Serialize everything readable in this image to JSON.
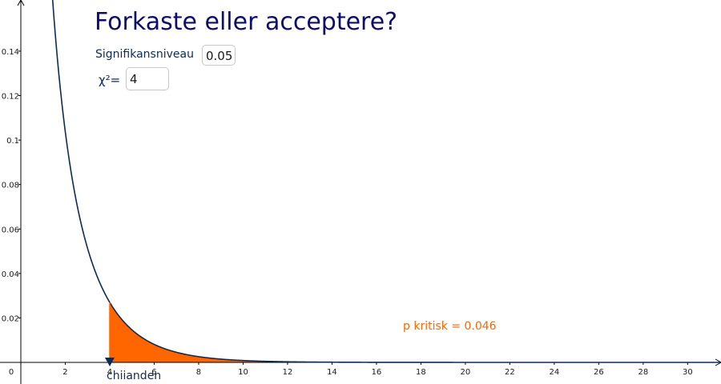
{
  "title": "Forkaste eller acceptere?",
  "significance": {
    "label": "Signifikansniveau",
    "value": "0.05"
  },
  "chi_square": {
    "label": "χ²=",
    "value": "4"
  },
  "p_critical_label": "p kritisk = 0.046",
  "point_label": "chiianden",
  "colors": {
    "curve": "#0d2a5c",
    "shade": "#ff6600",
    "axis": "#000000",
    "title": "#0d0d6b"
  },
  "chart_data": {
    "type": "area",
    "distribution": "chi-square",
    "degrees_of_freedom": 1,
    "shaded_from_x": 4,
    "x_ticks": [
      "0",
      "2",
      "4",
      "6",
      "8",
      "10",
      "12",
      "14",
      "16",
      "18",
      "20",
      "22",
      "24",
      "26",
      "28",
      "30"
    ],
    "y_ticks": [
      "0.02",
      "0.04",
      "0.06",
      "0.08",
      "0.1",
      "0.12",
      "0.14"
    ],
    "xlim": [
      0,
      31.5
    ],
    "ylim": [
      0,
      0.163
    ],
    "grid": false
  }
}
